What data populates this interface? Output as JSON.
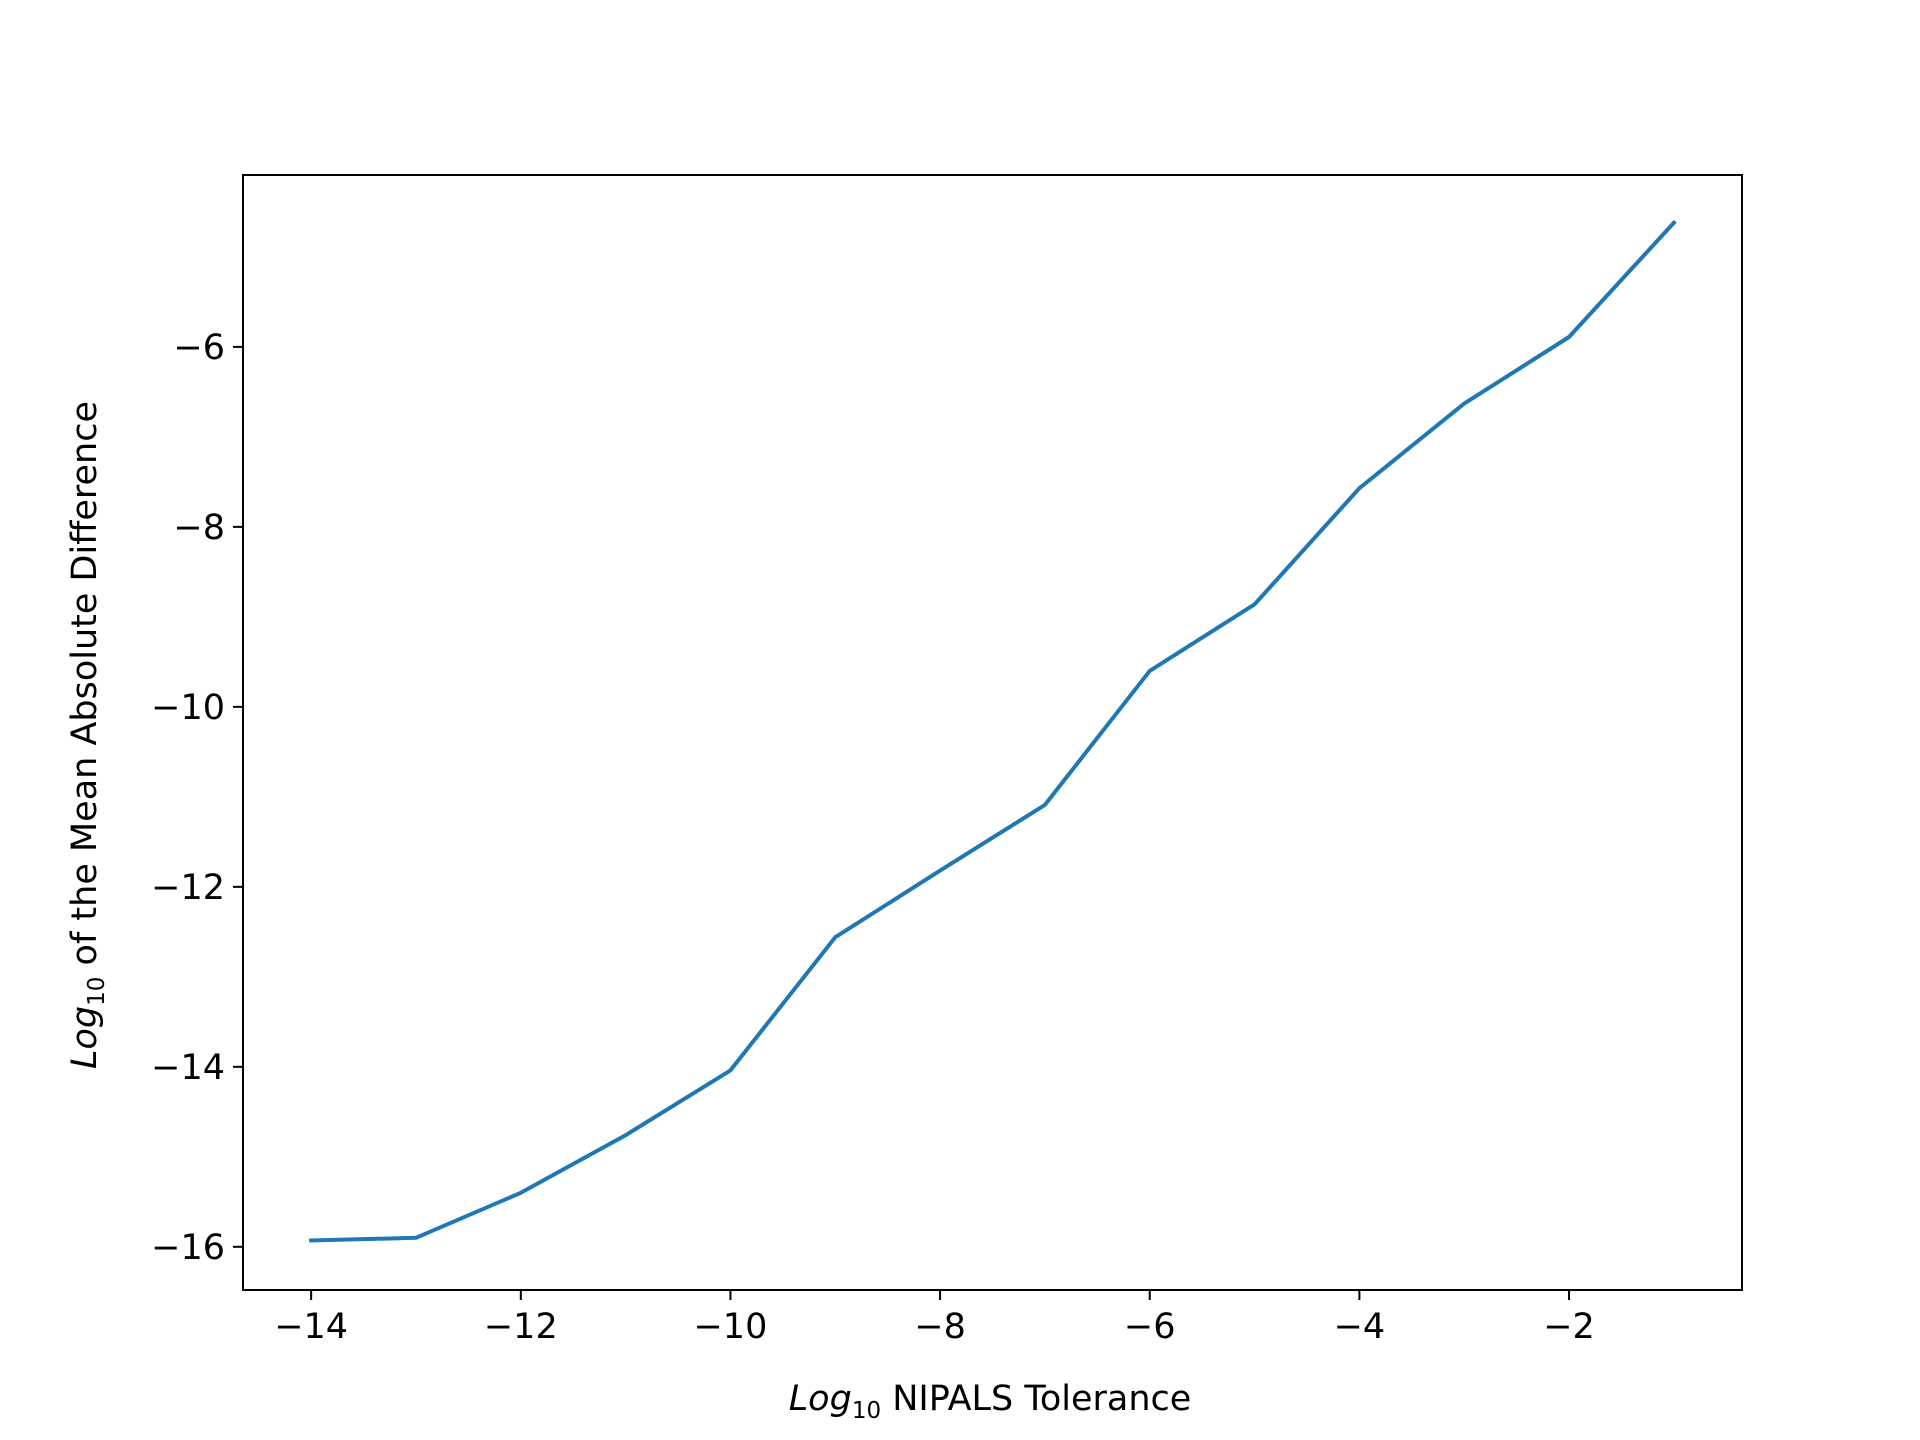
{
  "chart_data": {
    "type": "line",
    "xlabel": {
      "italic": "Log",
      "sub": "10",
      "rest": " NIPALS Tolerance"
    },
    "ylabel": {
      "italic": "Log",
      "sub": "10",
      "rest": " of the Mean Absolute Difference"
    },
    "x_ticks": [
      -14,
      -12,
      -10,
      -8,
      -6,
      -4,
      -2
    ],
    "y_ticks": [
      -16,
      -14,
      -12,
      -10,
      -8,
      -6
    ],
    "xlim": [
      -14.65,
      -0.35
    ],
    "ylim": [
      -16.48,
      -4.09
    ],
    "grid": false,
    "series": [
      {
        "color": "#1f77b4",
        "x": [
          -14,
          -13,
          -12,
          -11,
          -10,
          -9,
          -8,
          -7,
          -6,
          -5,
          -4,
          -3,
          -2,
          -1
        ],
        "y": [
          -15.93,
          -15.9,
          -15.4,
          -14.76,
          -14.04,
          -12.56,
          -11.82,
          -11.09,
          -9.6,
          -8.86,
          -7.57,
          -6.63,
          -5.89,
          -4.62
        ]
      }
    ]
  }
}
